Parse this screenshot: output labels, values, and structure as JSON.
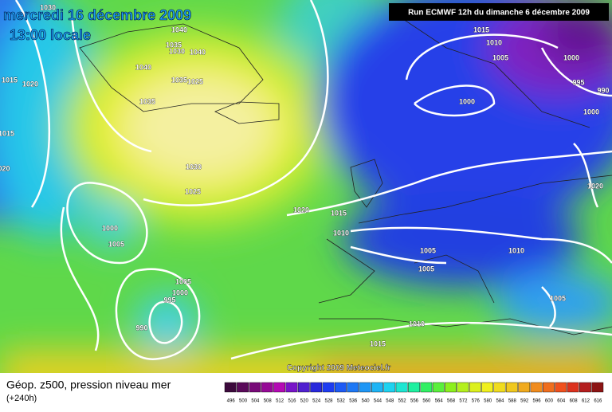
{
  "header": {
    "date": "mercredi 16 décembre 2009",
    "time": "13:00 locale",
    "run": "Run ECMWF 12h du dimanche 6 décembre 2009"
  },
  "isobar_labels": [
    "1030",
    "1040",
    "1035",
    "1030",
    "1040",
    "1040",
    "1035",
    "1025",
    "1035",
    "1015",
    "1020",
    "1015",
    "020",
    "1030",
    "1025",
    "1020",
    "1015",
    "1010",
    "1000",
    "1005",
    "1005",
    "1000",
    "995",
    "990",
    "1015",
    "1010",
    "1005",
    "1000",
    "995",
    "990",
    "1000",
    "1000",
    "1020",
    "1005",
    "1005",
    "1010",
    "1005",
    "1010",
    "1015"
  ],
  "copyright": "Copyright 2009 Meteociel.fr",
  "footer": {
    "title": "Géop. z500, pression niveau mer",
    "lead": "(+240h)"
  },
  "scale": [
    496,
    500,
    504,
    508,
    512,
    516,
    520,
    524,
    528,
    532,
    536,
    540,
    544,
    548,
    552,
    556,
    560,
    564,
    568,
    572,
    576,
    580,
    584,
    588,
    592,
    596,
    600,
    604,
    608,
    612,
    616
  ]
}
